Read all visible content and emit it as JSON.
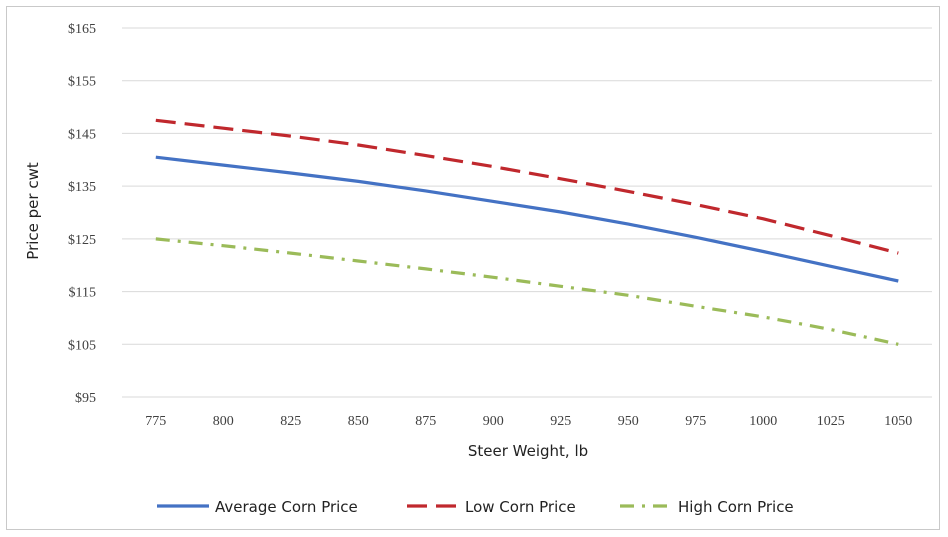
{
  "chart_data": {
    "type": "line",
    "title": "",
    "xlabel": "Steer Weight, lb",
    "ylabel": "Price per cwt",
    "x": [
      775,
      800,
      825,
      850,
      875,
      900,
      925,
      950,
      975,
      1000,
      1025,
      1050
    ],
    "x_tick_labels": [
      "775",
      "800",
      "825",
      "850",
      "875",
      "900",
      "925",
      "950",
      "975",
      "1000",
      "1025",
      "1050"
    ],
    "y_ticks": [
      95,
      105,
      115,
      125,
      135,
      145,
      155,
      165
    ],
    "y_tick_labels": [
      "$95",
      "$105",
      "$115",
      "$125",
      "$135",
      "$145",
      "$155",
      "$165"
    ],
    "ylim": [
      95,
      165
    ],
    "grid": "horizontal",
    "legend_position": "bottom",
    "series": [
      {
        "name": "Average Corn Price",
        "color": "#4472C4",
        "style": "solid",
        "values": [
          140.5,
          139.0,
          137.5,
          135.9,
          134.1,
          132.1,
          130.1,
          127.8,
          125.3,
          122.6,
          119.8,
          117.0
        ]
      },
      {
        "name": "Low Corn Price",
        "color": "#C0282D",
        "style": "dashed",
        "values": [
          147.5,
          146.0,
          144.5,
          142.8,
          140.8,
          138.7,
          136.4,
          134.0,
          131.5,
          128.8,
          125.6,
          122.3
        ]
      },
      {
        "name": "High Corn Price",
        "color": "#9BBB59",
        "style": "dash-dot",
        "values": [
          125.0,
          123.7,
          122.3,
          120.8,
          119.3,
          117.7,
          116.0,
          114.3,
          112.2,
          110.2,
          107.8,
          105.0
        ]
      }
    ]
  }
}
